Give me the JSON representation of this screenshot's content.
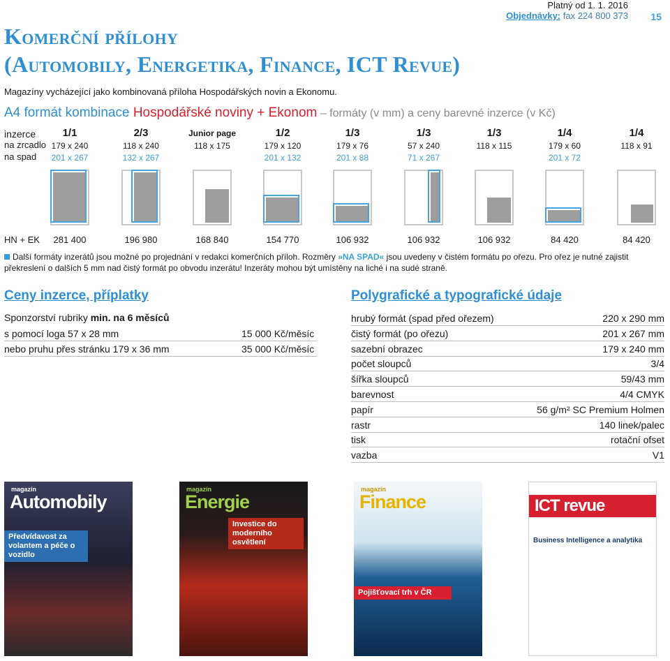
{
  "header": {
    "valid": "Platný od 1. 1. 2016",
    "order_label": "Objednávky:",
    "order_fax": " fax 224 800 373",
    "page_number": "15"
  },
  "title": {
    "line1": "Komerční přílohy",
    "line2": "(Automobily, Energetika, Finance, ICT Revue)"
  },
  "subtitle": "Magazíny vycházející jako kombinovaná příloha Hospodářských novin a Ekonomu.",
  "a4": {
    "t1": "A4 formát",
    "t2": " kombinace ",
    "t3": "Hospodářské noviny + Ekonom",
    "t4": " – formáty (v mm) a ceny barevné inzerce (v Kč)"
  },
  "grid_labels": {
    "inzerce": "inzerce",
    "zrcadlo": "na zrcadlo",
    "spad": "na spad",
    "prices": "HN + EK"
  },
  "formats": [
    {
      "frac": "1/1",
      "mirror": "179 x 240",
      "bleed": "201 x 267",
      "price": "281 400"
    },
    {
      "frac": "2/3",
      "mirror": "118 x 240",
      "bleed": "132 x 267",
      "price": "196 980"
    },
    {
      "frac": "Junior page",
      "mirror": "118 x 175",
      "bleed": "",
      "price": "168 840"
    },
    {
      "frac": "1/2",
      "mirror": "179 x 120",
      "bleed": "201 x 132",
      "price": "154 770"
    },
    {
      "frac": "1/3",
      "mirror": "179 x 76",
      "bleed": "201 x 88",
      "price": "106 932"
    },
    {
      "frac": "1/3",
      "mirror": "57 x 240",
      "bleed": "71 x 267",
      "price": "106 932"
    },
    {
      "frac": "1/3",
      "mirror": "118 x 115",
      "bleed": "",
      "price": "106 932"
    },
    {
      "frac": "1/4",
      "mirror": "179 x 60",
      "bleed": "201 x 72",
      "price": "84 420"
    },
    {
      "frac": "1/4",
      "mirror": "118 x 91",
      "bleed": "",
      "price": "84 420"
    }
  ],
  "note": {
    "part1": "Další formáty inzerátů jsou možné po projednání v redakci komerčních příloh. Rozměry ",
    "highlight": "»NA SPAD«",
    "part2": " jsou uvedeny v čistém formátu po ořezu. Pro ořez je nutné zajistit překreslení o dalších 5 mm nad čistý formát po obvodu inzerátu! Inzeráty mohou být umístěny na liché i na sudé straně."
  },
  "sections": {
    "prices_title": "Ceny inzerce, příplatky",
    "poly_title": "Polygrafické a typografické údaje"
  },
  "sponsorship": {
    "title_pre": "Sponzorství rubriky ",
    "title_bold": "min. na 6 měsíců",
    "rows": [
      {
        "label": "s pomocí loga 57 x 28 mm",
        "value": "15 000 Kč/měsíc"
      },
      {
        "label": "nebo pruhu přes stránku 179 x 36 mm",
        "value": "35 000 Kč/měsíc"
      }
    ]
  },
  "poly": [
    {
      "label": "hrubý formát (spad před ořezem)",
      "value": "220 x 290 mm"
    },
    {
      "label": "čistý formát (po ořezu)",
      "value": "201 x 267 mm"
    },
    {
      "label": "sazební obrazec",
      "value": "179 x 240 mm"
    },
    {
      "label": "počet sloupců",
      "value": "3/4"
    },
    {
      "label": "šířka sloupců",
      "value": "59/43 mm"
    },
    {
      "label": "barevnost",
      "value": "4/4 CMYK"
    },
    {
      "label": "papír",
      "value": "56 g/m² SC Premium Holmen"
    },
    {
      "label": "rastr",
      "value": "140 linek/palec"
    },
    {
      "label": "tisk",
      "value": "rotační ofset"
    },
    {
      "label": "vazba",
      "value": "V1"
    }
  ],
  "covers": [
    {
      "mag": "magazín",
      "name": "Automobily",
      "headline": "Předvídavost za volantem a péče o vozidlo",
      "bg": "#1b1c2a"
    },
    {
      "mag": "magazín",
      "name": "Energie",
      "headline": "Investice do moderního osvětlení",
      "bg": "#7a1414"
    },
    {
      "mag": "magazín",
      "name": "Finance",
      "headline": "Pojišťovací trh v ČR",
      "bg": "#0d3c66"
    },
    {
      "mag": "",
      "name": "ICT revue",
      "headline": "Business Intelligence a analytika",
      "bg": "#ffffff"
    }
  ]
}
